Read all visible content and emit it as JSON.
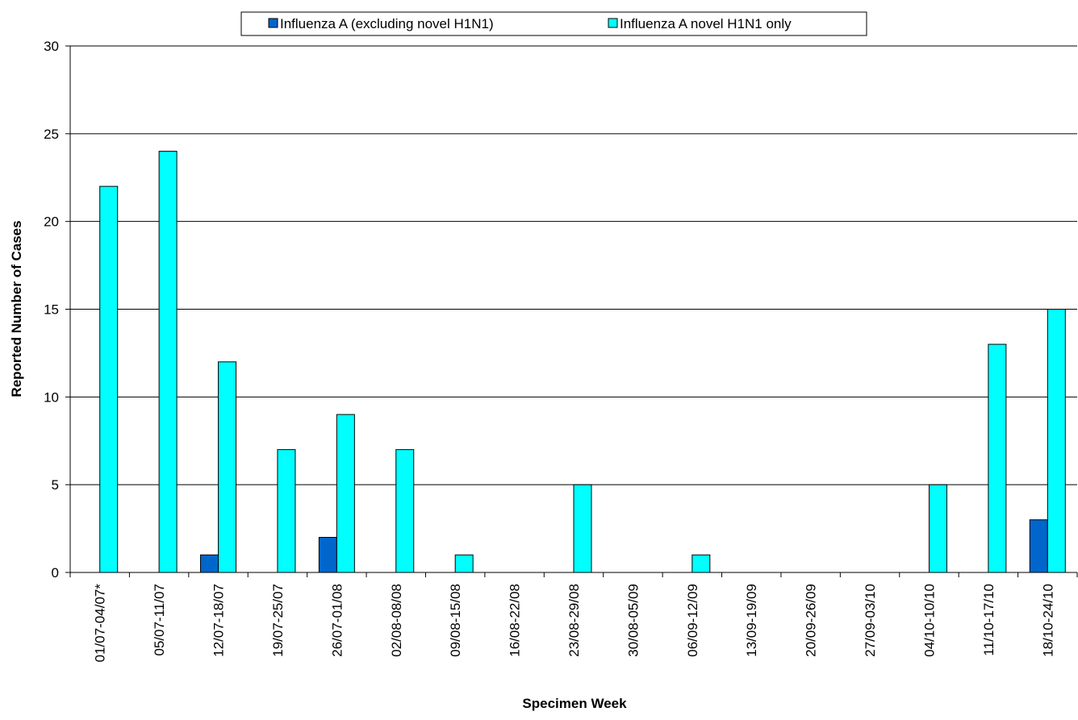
{
  "chart_data": {
    "type": "bar",
    "title": "",
    "xlabel": "Specimen Week",
    "ylabel": "Reported Number of Cases",
    "ylim": [
      0,
      30
    ],
    "yticks": [
      0,
      5,
      10,
      15,
      20,
      25,
      30
    ],
    "grid": true,
    "legend_position": "top",
    "categories": [
      "01/07-04/07*",
      "05/07-11/07",
      "12/07-18/07",
      "19/07-25/07",
      "26/07-01/08",
      "02/08-08/08",
      "09/08-15/08",
      "16/08-22/08",
      "23/08-29/08",
      "30/08-05/09",
      "06/09-12/09",
      "13/09-19/09",
      "20/09-26/09",
      "27/09-03/10",
      "04/10-10/10",
      "11/10-17/10",
      "18/10-24/10"
    ],
    "series": [
      {
        "name": "Influenza A (excluding novel H1N1)",
        "color": "#0066CC",
        "values": [
          0,
          0,
          1,
          0,
          2,
          0,
          0,
          0,
          0,
          0,
          0,
          0,
          0,
          0,
          0,
          0,
          3
        ]
      },
      {
        "name": "Influenza A novel H1N1 only",
        "color": "#00FFFF",
        "values": [
          22,
          24,
          12,
          7,
          9,
          7,
          1,
          0,
          5,
          0,
          1,
          0,
          0,
          0,
          5,
          13,
          15
        ]
      }
    ]
  }
}
